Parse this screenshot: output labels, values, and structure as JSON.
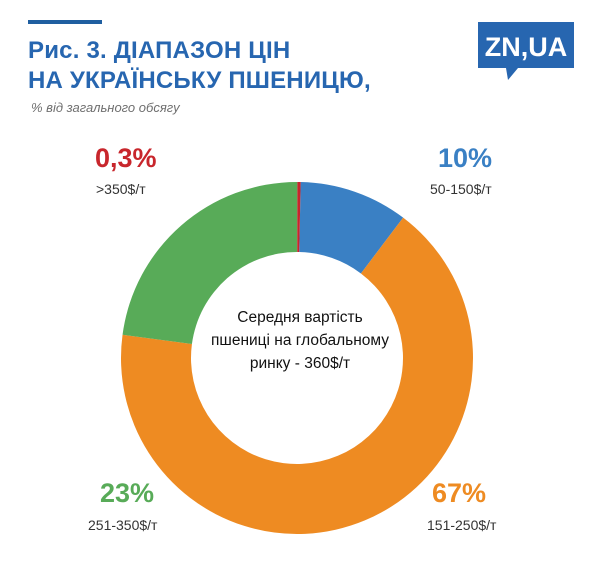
{
  "header": {
    "title_line1": "Рис. 3. ДІАПАЗОН ЦІН",
    "title_line2": "НА УКРАЇНСЬКУ ПШЕНИЦЮ,",
    "subtitle": "% від загального обсягу"
  },
  "logo": {
    "text": "ZN,UA"
  },
  "center_note": {
    "line1": "Середня вартість",
    "line2": "пшениці на глобальному",
    "line3": "ринку - 360$/т"
  },
  "colors": {
    "title": "#2766b0",
    "logo_bg": "#2766b0",
    "red": "#c8262c",
    "blue": "#3a80c4",
    "orange": "#ee8b22",
    "green": "#58ab58"
  },
  "chart_data": {
    "type": "pie",
    "donut": true,
    "title": "Рис. 3. ДІАПАЗОН ЦІН НА УКРАЇНСЬКУ ПШЕНИЦЮ,",
    "subtitle": "% від загального обсягу",
    "slices": [
      {
        "label": "50-150$/т",
        "value": 10,
        "value_label": "10%",
        "color": "#3a80c4"
      },
      {
        "label": "151-250$/т",
        "value": 67,
        "value_label": "67%",
        "color": "#ee8b22"
      },
      {
        "label": "251-350$/т",
        "value": 23,
        "value_label": "23%",
        "color": "#58ab58"
      },
      {
        "label": ">350$/т",
        "value": 0.3,
        "value_label": "0,3%",
        "color": "#c8262c"
      }
    ]
  }
}
